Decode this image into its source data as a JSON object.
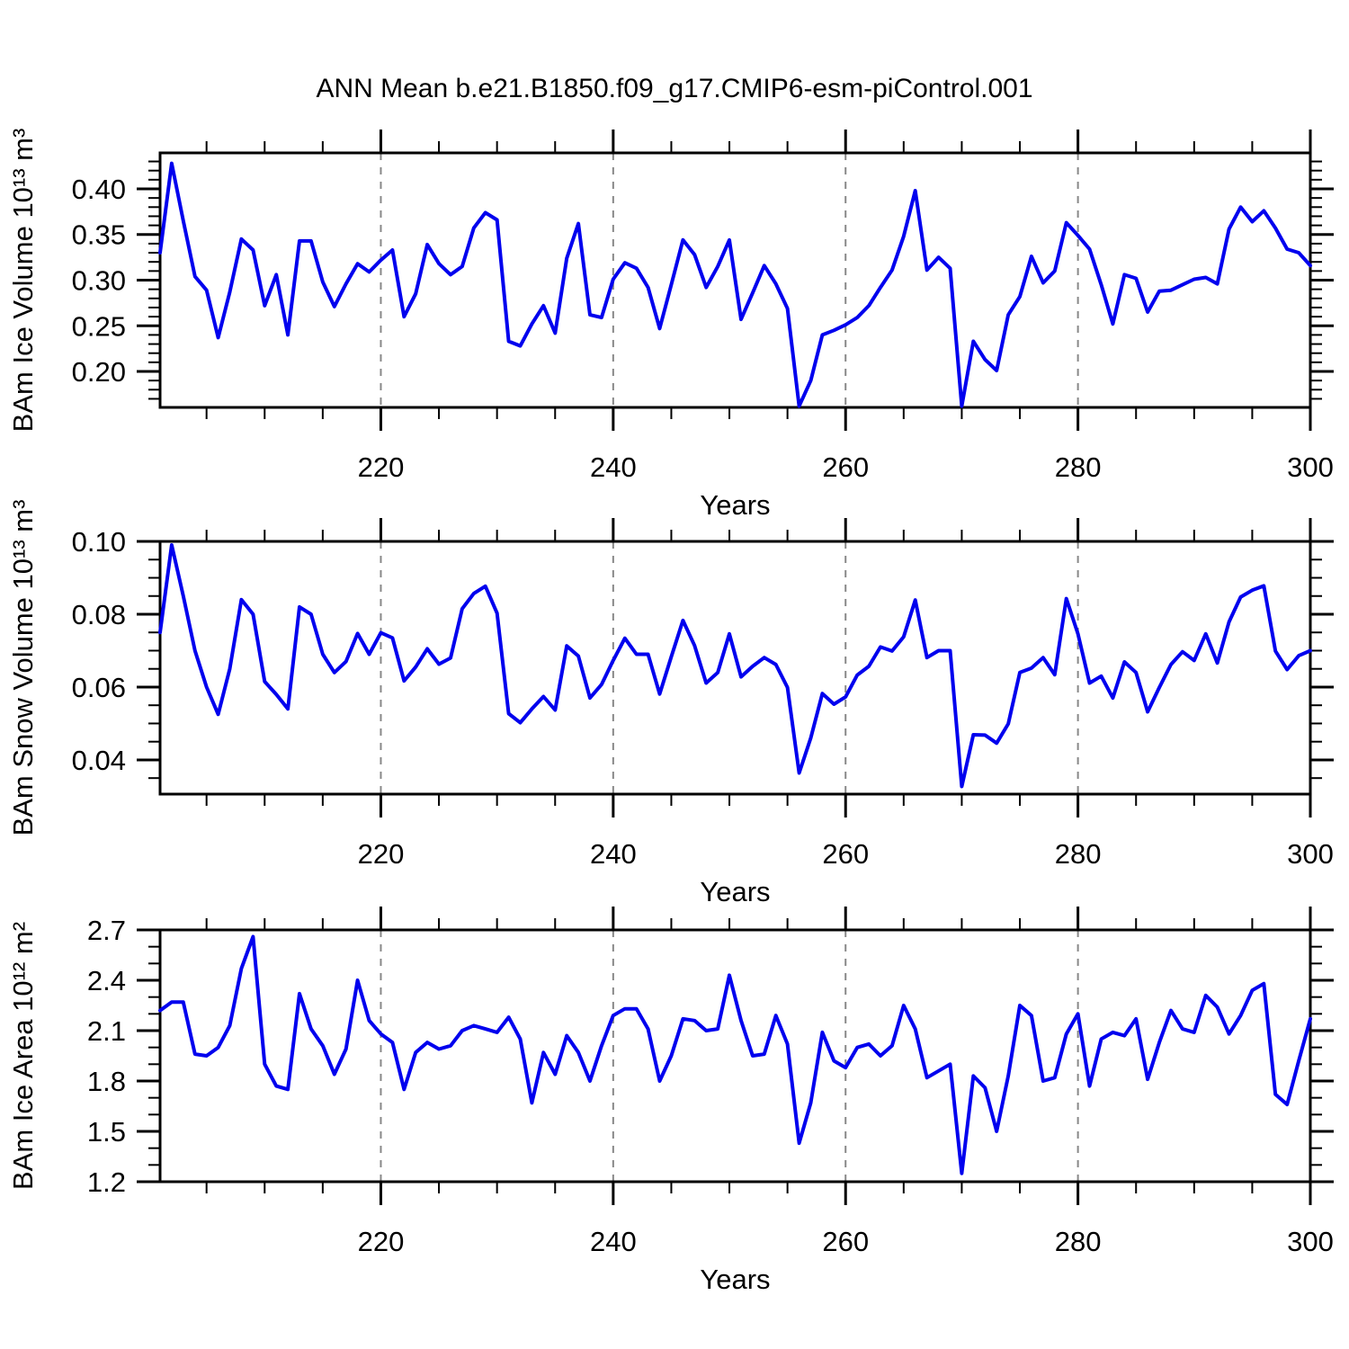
{
  "title": "ANN Mean b.e21.B1850.f09_g17.CMIP6-esm-piControl.001",
  "colors": {
    "line": "#0000EE",
    "grid": "#888888",
    "axis": "#000000",
    "background": "#FFFFFF"
  },
  "chart_data": [
    {
      "type": "line",
      "name": "ice-volume",
      "ylabel": "BAm Ice Volume 10¹³ m³",
      "xlabel": "Years",
      "x_start": 201,
      "x_end": 300,
      "x_step": 1,
      "xlim": [
        201,
        300
      ],
      "ylim": [
        0.1606,
        0.4394
      ],
      "x_ticks_major": [
        220,
        240,
        260,
        280,
        300
      ],
      "x_minor_step": 5,
      "grid_x": [
        220,
        240,
        260,
        280
      ],
      "y_ticks": [
        {
          "value": 0.4,
          "label": "0.40"
        },
        {
          "value": 0.35,
          "label": "0.35"
        },
        {
          "value": 0.3,
          "label": "0.30"
        },
        {
          "value": 0.25,
          "label": "0.25"
        },
        {
          "value": 0.2,
          "label": "0.20"
        }
      ],
      "y_minor_step": 0.01,
      "values": [
        0.33,
        0.428,
        0.365,
        0.304,
        0.289,
        0.237,
        0.287,
        0.345,
        0.333,
        0.272,
        0.306,
        0.24,
        0.343,
        0.343,
        0.298,
        0.271,
        0.296,
        0.318,
        0.309,
        0.322,
        0.333,
        0.26,
        0.285,
        0.339,
        0.318,
        0.306,
        0.315,
        0.357,
        0.374,
        0.366,
        0.233,
        0.228,
        0.252,
        0.272,
        0.242,
        0.324,
        0.362,
        0.262,
        0.259,
        0.301,
        0.319,
        0.313,
        0.292,
        0.247,
        0.295,
        0.344,
        0.328,
        0.292,
        0.315,
        0.344,
        0.257,
        0.286,
        0.316,
        0.296,
        0.269,
        0.162,
        0.19,
        0.24,
        0.245,
        0.251,
        0.259,
        0.272,
        0.292,
        0.311,
        0.348,
        0.398,
        0.311,
        0.325,
        0.313,
        0.162,
        0.233,
        0.213,
        0.201,
        0.262,
        0.282,
        0.326,
        0.297,
        0.31,
        0.363,
        0.349,
        0.334,
        0.295,
        0.252,
        0.306,
        0.302,
        0.265,
        0.288,
        0.289,
        0.295,
        0.301,
        0.303,
        0.296,
        0.356,
        0.38,
        0.364,
        0.376,
        0.357,
        0.334,
        0.33,
        0.316
      ]
    },
    {
      "type": "line",
      "name": "snow-volume",
      "ylabel": "BAm Snow Volume 10¹³ m³",
      "xlabel": "Years",
      "x_start": 201,
      "x_end": 300,
      "x_step": 1,
      "xlim": [
        201,
        300
      ],
      "ylim": [
        0.0306,
        0.1
      ],
      "x_ticks_major": [
        220,
        240,
        260,
        280,
        300
      ],
      "x_minor_step": 5,
      "grid_x": [
        220,
        240,
        260,
        280
      ],
      "y_ticks": [
        {
          "value": 0.1,
          "label": "0.10"
        },
        {
          "value": 0.08,
          "label": "0.08"
        },
        {
          "value": 0.06,
          "label": "0.06"
        },
        {
          "value": 0.04,
          "label": "0.04"
        }
      ],
      "y_minor_step": 0.005,
      "values": [
        0.075,
        0.099,
        0.085,
        0.07,
        0.06,
        0.0525,
        0.065,
        0.084,
        0.08,
        0.0615,
        0.058,
        0.054,
        0.082,
        0.08,
        0.069,
        0.064,
        0.067,
        0.0747,
        0.069,
        0.0749,
        0.0735,
        0.0617,
        0.0655,
        0.0705,
        0.0663,
        0.068,
        0.0815,
        0.0857,
        0.0877,
        0.0803,
        0.0527,
        0.0502,
        0.054,
        0.0574,
        0.0537,
        0.0713,
        0.0685,
        0.057,
        0.0607,
        0.0673,
        0.0734,
        0.069,
        0.069,
        0.0581,
        0.0683,
        0.0783,
        0.0714,
        0.0611,
        0.064,
        0.0746,
        0.0628,
        0.0657,
        0.0681,
        0.0662,
        0.0599,
        0.0364,
        0.046,
        0.0582,
        0.0553,
        0.0573,
        0.0633,
        0.0657,
        0.071,
        0.0699,
        0.0738,
        0.0839,
        0.0681,
        0.07,
        0.07,
        0.0327,
        0.0469,
        0.0468,
        0.0446,
        0.0499,
        0.064,
        0.0652,
        0.0681,
        0.0634,
        0.0843,
        0.0746,
        0.0611,
        0.063,
        0.057,
        0.0669,
        0.064,
        0.0532,
        0.0599,
        0.0662,
        0.0697,
        0.0673,
        0.0746,
        0.0666,
        0.0779,
        0.0847,
        0.0866,
        0.0878,
        0.0699,
        0.0648,
        0.0686,
        0.07
      ]
    },
    {
      "type": "line",
      "name": "ice-area",
      "ylabel": "BAm Ice Area 10¹² m²",
      "xlabel": "Years",
      "x_start": 201,
      "x_end": 300,
      "x_step": 1,
      "xlim": [
        201,
        300
      ],
      "ylim": [
        1.2,
        2.7
      ],
      "x_ticks_major": [
        220,
        240,
        260,
        280,
        300
      ],
      "x_minor_step": 5,
      "grid_x": [
        220,
        240,
        260,
        280
      ],
      "y_ticks": [
        {
          "value": 2.7,
          "label": "2.7"
        },
        {
          "value": 2.4,
          "label": "2.4"
        },
        {
          "value": 2.1,
          "label": "2.1"
        },
        {
          "value": 1.8,
          "label": "1.8"
        },
        {
          "value": 1.5,
          "label": "1.5"
        },
        {
          "value": 1.2,
          "label": "1.2"
        }
      ],
      "y_minor_step": 0.1,
      "values": [
        2.22,
        2.27,
        2.27,
        1.96,
        1.95,
        2.0,
        2.13,
        2.47,
        2.66,
        1.9,
        1.77,
        1.75,
        2.32,
        2.11,
        2.01,
        1.84,
        1.99,
        2.4,
        2.16,
        2.08,
        2.03,
        1.75,
        1.97,
        2.03,
        1.99,
        2.01,
        2.1,
        2.13,
        2.11,
        2.09,
        2.18,
        2.05,
        1.67,
        1.97,
        1.84,
        2.07,
        1.97,
        1.8,
        2.01,
        2.19,
        2.23,
        2.23,
        2.11,
        1.8,
        1.95,
        2.17,
        2.16,
        2.1,
        2.11,
        2.43,
        2.16,
        1.95,
        1.96,
        2.19,
        2.02,
        1.43,
        1.67,
        2.09,
        1.92,
        1.88,
        2.0,
        2.02,
        1.95,
        2.01,
        2.25,
        2.11,
        1.82,
        1.86,
        1.9,
        1.25,
        1.83,
        1.76,
        1.5,
        1.83,
        2.25,
        2.19,
        1.8,
        1.82,
        2.08,
        2.2,
        1.77,
        2.05,
        2.09,
        2.07,
        2.17,
        1.81,
        2.03,
        2.22,
        2.11,
        2.09,
        2.31,
        2.24,
        2.08,
        2.19,
        2.34,
        2.38,
        1.72,
        1.66,
        1.92,
        2.17
      ]
    }
  ]
}
